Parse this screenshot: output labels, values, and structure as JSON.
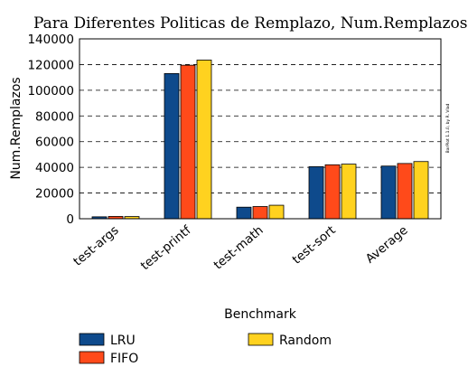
{
  "chart_data": {
    "type": "bar",
    "title": "Para Diferentes Politicas de Remplazo, Num.Remplazos realizados",
    "xlabel": "Benchmark",
    "ylabel": "Num.Remplazos",
    "ylim": [
      0,
      140000
    ],
    "yticks": [
      "0",
      "20000",
      "40000",
      "60000",
      "80000",
      "100000",
      "120000",
      "140000"
    ],
    "grid": "horizontal-dashed",
    "legend_position": "bottom",
    "categories": [
      "test-args",
      "test-printf",
      "test-math",
      "test-sort",
      "Average"
    ],
    "series": [
      {
        "name": "LRU",
        "color": "#0e4a8c",
        "values": [
          1500,
          113000,
          9000,
          40500,
          41000
        ]
      },
      {
        "name": "FIFO",
        "color": "#ff4a1a",
        "values": [
          1800,
          119500,
          9500,
          42000,
          43000
        ]
      },
      {
        "name": "Random",
        "color": "#ffd21f",
        "values": [
          1700,
          123500,
          10500,
          42500,
          44500
        ]
      }
    ],
    "credit": "BarPlot 1.1.0, by R. Vlad"
  }
}
